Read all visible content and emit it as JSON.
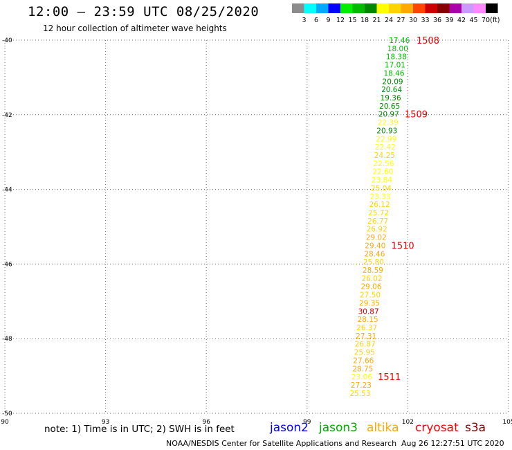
{
  "header": {
    "title": "12:00 – 23:59 UTC 08/25/2020",
    "subtitle": "12 hour collection of altimeter wave heights"
  },
  "color_scale": {
    "unit": "(ft)",
    "bins": [
      {
        "label": "3",
        "color": "#8c8c8c"
      },
      {
        "label": "6",
        "color": "#00ffff"
      },
      {
        "label": "9",
        "color": "#00aaff"
      },
      {
        "label": "12",
        "color": "#0000ff"
      },
      {
        "label": "15",
        "color": "#00ee00"
      },
      {
        "label": "18",
        "color": "#00bb00"
      },
      {
        "label": "21",
        "color": "#008800"
      },
      {
        "label": "24",
        "color": "#ffff00"
      },
      {
        "label": "27",
        "color": "#ffd400"
      },
      {
        "label": "30",
        "color": "#ffaa00"
      },
      {
        "label": "33",
        "color": "#ff4400"
      },
      {
        "label": "36",
        "color": "#cc0000"
      },
      {
        "label": "39",
        "color": "#880000"
      },
      {
        "label": "42",
        "color": "#aa00aa"
      },
      {
        "label": "45",
        "color": "#cc99ff"
      },
      {
        "label": "70",
        "color": "#ff88ff"
      },
      {
        "label": "",
        "color": "#000000"
      }
    ]
  },
  "footer": {
    "note": "note: 1) Time is in UTC; 2) SWH is in feet",
    "satellites": [
      {
        "name": "jason2",
        "color": "#0000ff"
      },
      {
        "name": "jason3",
        "color": "#00aa00"
      },
      {
        "name": "altika",
        "color": "#ffaa00"
      },
      {
        "name": "cryosat",
        "color": "#ff0000"
      },
      {
        "name": "s3a",
        "color": "#880000"
      }
    ],
    "credit": "NOAA/NESDIS Center for Satellite Applications and Research",
    "timestamp": "Aug 26 12:27:51 UTC 2020"
  },
  "chart_data": {
    "type": "scatter",
    "title": "12:00 – 23:59 UTC 08/25/2020",
    "subtitle": "12 hour collection of altimeter wave heights",
    "xlabel": "",
    "ylabel": "",
    "xlim": [
      90,
      105
    ],
    "ylim": [
      -50,
      -40
    ],
    "x_ticks": [
      "90",
      "93",
      "96",
      "99",
      "102",
      "105"
    ],
    "y_ticks": [
      "-40",
      "-42",
      "-44",
      "-46",
      "-48",
      "-50"
    ],
    "grid": true,
    "points": [
      {
        "lon": 101.75,
        "lat": -40.0,
        "swh": "17.46",
        "color": "#00bb00"
      },
      {
        "lon": 101.7,
        "lat": -40.22,
        "swh": "18.00",
        "color": "#00bb00"
      },
      {
        "lon": 101.66,
        "lat": -40.44,
        "swh": "18.38",
        "color": "#00bb00"
      },
      {
        "lon": 101.62,
        "lat": -40.66,
        "swh": "17.01",
        "color": "#00bb00"
      },
      {
        "lon": 101.59,
        "lat": -40.88,
        "swh": "18.46",
        "color": "#00bb00"
      },
      {
        "lon": 101.55,
        "lat": -41.1,
        "swh": "20.09",
        "color": "#008800"
      },
      {
        "lon": 101.52,
        "lat": -41.32,
        "swh": "20.64",
        "color": "#008800"
      },
      {
        "lon": 101.49,
        "lat": -41.54,
        "swh": "19.36",
        "color": "#008800"
      },
      {
        "lon": 101.46,
        "lat": -41.76,
        "swh": "20.65",
        "color": "#008800"
      },
      {
        "lon": 101.43,
        "lat": -41.98,
        "swh": "20.97",
        "color": "#008800"
      },
      {
        "lon": 101.41,
        "lat": -42.2,
        "swh": "22.39",
        "color": "#ffff00"
      },
      {
        "lon": 101.38,
        "lat": -42.42,
        "swh": "20.93",
        "color": "#008800"
      },
      {
        "lon": 101.36,
        "lat": -42.64,
        "swh": "22.99",
        "color": "#ffff00"
      },
      {
        "lon": 101.33,
        "lat": -42.86,
        "swh": "22.42",
        "color": "#ffff00"
      },
      {
        "lon": 101.31,
        "lat": -43.08,
        "swh": "24.25",
        "color": "#ffd400"
      },
      {
        "lon": 101.28,
        "lat": -43.3,
        "swh": "22.56",
        "color": "#ffff00"
      },
      {
        "lon": 101.26,
        "lat": -43.52,
        "swh": "22.60",
        "color": "#ffff00"
      },
      {
        "lon": 101.23,
        "lat": -43.74,
        "swh": "23.84",
        "color": "#ffff00"
      },
      {
        "lon": 101.21,
        "lat": -43.96,
        "swh": "25.04",
        "color": "#ffd400"
      },
      {
        "lon": 101.18,
        "lat": -44.18,
        "swh": "23.33",
        "color": "#ffff00"
      },
      {
        "lon": 101.16,
        "lat": -44.4,
        "swh": "26.12",
        "color": "#ffd400"
      },
      {
        "lon": 101.13,
        "lat": -44.62,
        "swh": "25.72",
        "color": "#ffd400"
      },
      {
        "lon": 101.11,
        "lat": -44.84,
        "swh": "26.77",
        "color": "#ffd400"
      },
      {
        "lon": 101.08,
        "lat": -45.06,
        "swh": "26.92",
        "color": "#ffd400"
      },
      {
        "lon": 101.06,
        "lat": -45.28,
        "swh": "29.02",
        "color": "#ffaa00"
      },
      {
        "lon": 101.03,
        "lat": -45.5,
        "swh": "29.40",
        "color": "#ffaa00"
      },
      {
        "lon": 101.01,
        "lat": -45.72,
        "swh": "28.46",
        "color": "#ffaa00"
      },
      {
        "lon": 100.98,
        "lat": -45.94,
        "swh": "25.80",
        "color": "#ffd400"
      },
      {
        "lon": 100.96,
        "lat": -46.16,
        "swh": "28.59",
        "color": "#ffaa00"
      },
      {
        "lon": 100.93,
        "lat": -46.38,
        "swh": "26.02",
        "color": "#ffd400"
      },
      {
        "lon": 100.91,
        "lat": -46.6,
        "swh": "29.06",
        "color": "#ffaa00"
      },
      {
        "lon": 100.88,
        "lat": -46.82,
        "swh": "27.50",
        "color": "#ffd400"
      },
      {
        "lon": 100.86,
        "lat": -47.04,
        "swh": "29.35",
        "color": "#ffaa00"
      },
      {
        "lon": 100.83,
        "lat": -47.26,
        "swh": "30.87",
        "color": "#cc0000"
      },
      {
        "lon": 100.81,
        "lat": -47.48,
        "swh": "28.15",
        "color": "#ffaa00"
      },
      {
        "lon": 100.78,
        "lat": -47.7,
        "swh": "26.37",
        "color": "#ffd400"
      },
      {
        "lon": 100.76,
        "lat": -47.92,
        "swh": "27.31",
        "color": "#ffaa00"
      },
      {
        "lon": 100.73,
        "lat": -48.14,
        "swh": "26.87",
        "color": "#ffd400"
      },
      {
        "lon": 100.71,
        "lat": -48.36,
        "swh": "25.95",
        "color": "#ffd400"
      },
      {
        "lon": 100.68,
        "lat": -48.58,
        "swh": "27.66",
        "color": "#ffaa00"
      },
      {
        "lon": 100.66,
        "lat": -48.8,
        "swh": "28.75",
        "color": "#ffaa00"
      },
      {
        "lon": 100.63,
        "lat": -49.02,
        "swh": "23.06",
        "color": "#ffff00"
      },
      {
        "lon": 100.61,
        "lat": -49.24,
        "swh": "27.23",
        "color": "#ffaa00"
      },
      {
        "lon": 100.58,
        "lat": -49.46,
        "swh": "25.53",
        "color": "#ffd400"
      }
    ],
    "time_labels": [
      {
        "text": "1508",
        "lon": 102.6,
        "lat": -40.0,
        "color": "#ee0000"
      },
      {
        "text": "1509",
        "lon": 102.25,
        "lat": -41.98,
        "color": "#ee0000"
      },
      {
        "text": "1510",
        "lon": 101.85,
        "lat": -45.5,
        "color": "#ee0000"
      },
      {
        "text": "1511",
        "lon": 101.45,
        "lat": -49.02,
        "color": "#ee0000"
      }
    ]
  }
}
